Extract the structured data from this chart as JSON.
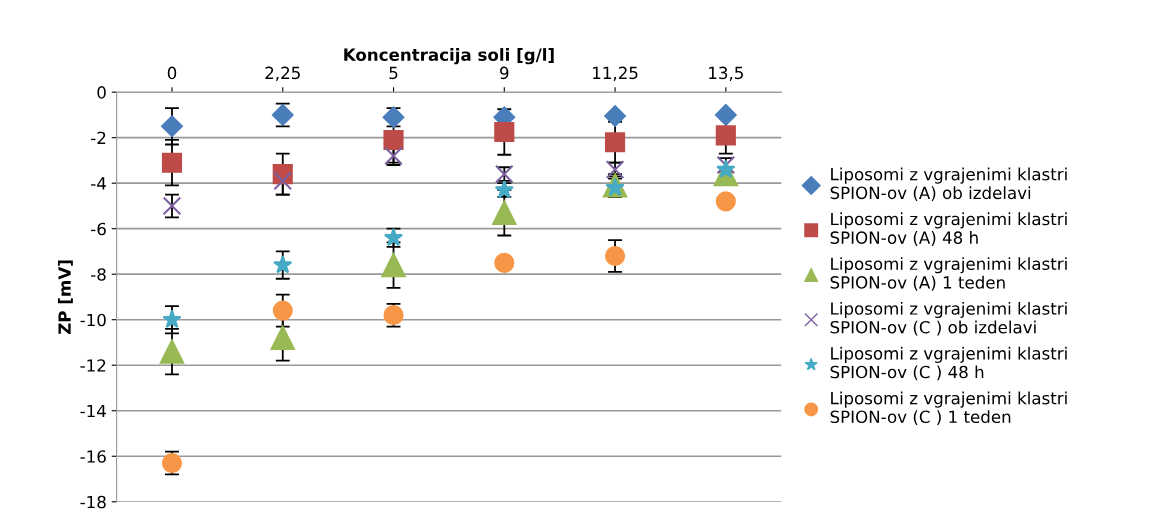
{
  "chart_data": {
    "type": "scatter",
    "xlabel": "Koncentracija soli [g/l]",
    "ylabel": "ZP [mV]",
    "categories": [
      "0",
      "2,25",
      "5",
      "9",
      "11,25",
      "13,5"
    ],
    "ylim": [
      -18,
      0
    ],
    "yticks": [
      -18,
      -16,
      -14,
      -12,
      -10,
      -8,
      -6,
      -4,
      -2,
      0
    ],
    "grid": "y",
    "legend": "right",
    "series": [
      {
        "name": "Liposomi z vgrajenimi klastri SPION-ov (A) ob izdelavi",
        "color": "#4a7ebb",
        "marker": "diamond",
        "values": [
          -1.5,
          -1.0,
          -1.1,
          -1.1,
          -1.05,
          -1.0
        ],
        "errors": [
          0.8,
          0.5,
          0.4,
          null,
          null,
          null
        ]
      },
      {
        "name": "Liposomi z vgrajenimi klastri SPION-ov (A) 48 h",
        "color": "#be4b48",
        "marker": "square",
        "values": [
          -3.1,
          -3.6,
          -2.1,
          -1.75,
          -2.2,
          -1.9
        ],
        "errors": [
          1.0,
          0.9,
          1.0,
          1.0,
          0.9,
          0.8
        ]
      },
      {
        "name": "Liposomi z vgrajenimi klastri SPION-ov (A) 1 teden",
        "color": "#98b954",
        "marker": "triangle",
        "values": [
          -11.4,
          -10.8,
          -7.6,
          -5.3,
          -4.1,
          -3.6
        ],
        "errors": [
          1.0,
          1.0,
          1.0,
          1.0,
          0.5,
          null
        ]
      },
      {
        "name": "Liposomi z vgrajenimi klastri SPION-ov (C ) ob izdelavi",
        "color": "#7d60a0",
        "marker": "cross",
        "values": [
          -5.0,
          -3.9,
          -2.8,
          -3.6,
          -3.4,
          -3.2
        ],
        "errors": [
          0.5,
          0.6,
          0.4,
          0.3,
          0.3,
          0.3
        ]
      },
      {
        "name": "Liposomi z vgrajenimi klastri SPION-ov (C ) 48 h",
        "color": "#46aac5",
        "marker": "star",
        "values": [
          -10.0,
          -7.6,
          -6.4,
          -4.3,
          -4.2,
          -3.4
        ],
        "errors": [
          0.6,
          0.6,
          0.4,
          0.3,
          0.4,
          null
        ]
      },
      {
        "name": "Liposomi z vgrajenimi klastri SPION-ov (C ) 1 teden",
        "color": "#f79646",
        "marker": "circle",
        "values": [
          -16.3,
          -9.6,
          -9.8,
          -7.5,
          -7.2,
          -4.8
        ],
        "errors": [
          0.5,
          0.7,
          0.5,
          null,
          0.7,
          null
        ]
      }
    ]
  }
}
